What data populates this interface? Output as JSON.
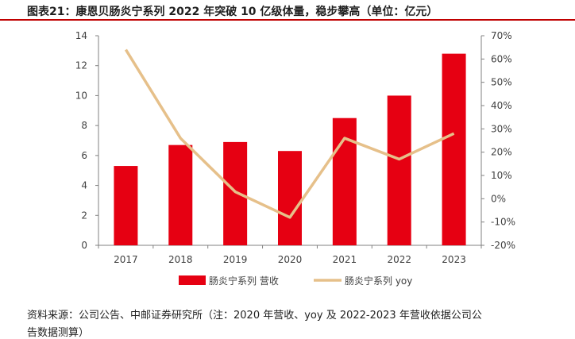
{
  "header": {
    "title": "图表21：康恩贝肠炎宁系列 2022 年突破 10 亿级体量，稳步攀高（单位：亿元）"
  },
  "source": {
    "line1": "资料来源：公司公告、中邮证券研究所（注：2020 年营收、yoy 及 2022-2023 年营收依据公司公",
    "line2": "告数据测算）"
  },
  "colors": {
    "bar": "#e60012",
    "line": "#e6c08a",
    "title_rule": "#c00000"
  },
  "chart_data": {
    "type": "bar",
    "title": "",
    "categories": [
      "2017",
      "2018",
      "2019",
      "2020",
      "2021",
      "2022",
      "2023"
    ],
    "series": [
      {
        "name": "肠炎宁系列 营收",
        "type": "bar",
        "axis": "left",
        "values": [
          5.3,
          6.7,
          6.9,
          6.3,
          8.5,
          10.0,
          12.8
        ]
      },
      {
        "name": "肠炎宁系列 yoy",
        "type": "line",
        "axis": "right",
        "values": [
          0.64,
          0.26,
          0.03,
          -0.08,
          0.26,
          0.17,
          0.28
        ]
      }
    ],
    "ylim_left": [
      0,
      14
    ],
    "yticks_left": [
      "0",
      "2",
      "4",
      "6",
      "8",
      "10",
      "12",
      "14"
    ],
    "ylim_right": [
      -0.2,
      0.7
    ],
    "yticks_right": [
      "-20%",
      "-10%",
      "0%",
      "10%",
      "20%",
      "30%",
      "40%",
      "50%",
      "60%",
      "70%"
    ],
    "legend_position": "bottom",
    "grid": false
  }
}
